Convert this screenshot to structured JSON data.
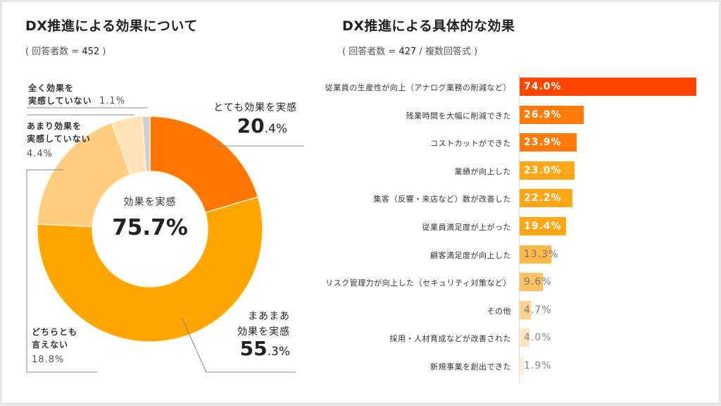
{
  "left_panel": {
    "title": "DX推進による効果について",
    "subtitle_prefix": "( 回答者数 = ",
    "respondents": "452",
    "subtitle_suffix": " )"
  },
  "right_panel": {
    "title": "DX推進による具体的な効果",
    "subtitle_prefix": "( 回答者数 = ",
    "respondents": "427",
    "subtitle_suffix": " / 複数回答式 )"
  },
  "chart_data": [
    {
      "type": "pie",
      "variant": "donut",
      "title": "DX推進による効果について",
      "n": 452,
      "center_caption": "効果を実感",
      "center_value": "75.7%",
      "slices": [
        {
          "label": "とても効果を実感",
          "value": 20.4,
          "color": "#FF7700"
        },
        {
          "label": "まあまあ効果を実感",
          "value": 55.3,
          "color": "#FFA500"
        },
        {
          "label": "どちらとも言えない",
          "value": 18.8,
          "color": "#FFCC80"
        },
        {
          "label": "あまり効果を実感していない",
          "value": 4.4,
          "color": "#FFE2B8"
        },
        {
          "label": "全く効果を実感していない",
          "value": 1.1,
          "color": "#CFCFCF"
        }
      ],
      "labels_display": {
        "very": {
          "line1": "とても効果を実感",
          "int": "20",
          "dec": ".4%"
        },
        "somewhat": {
          "line1": "まあまあ",
          "line2": "効果を実感",
          "int": "55",
          "dec": ".3%"
        },
        "neutral": {
          "line1": "どちらとも",
          "line2": "言えない",
          "pct": "18.8%"
        },
        "notmuch": {
          "line1": "あまり効果を",
          "line2": "実感していない",
          "pct": "4.4%"
        },
        "none": {
          "line1": "全く効果を",
          "line2": "実感していない",
          "pct": "1.1%"
        }
      }
    },
    {
      "type": "bar",
      "orientation": "horizontal",
      "title": "DX推進による具体的な効果",
      "n": 427,
      "xlim": [
        0,
        75
      ],
      "categories": [
        "従業員の生産性が向上（アナログ業務の削減など）",
        "残業時間を大幅に削減できた",
        "コストカットができた",
        "業績が向上した",
        "集客（反響・来店など）数が改善した",
        "従業員満足度が上がった",
        "顧客満足度が向上した",
        "リスク管理力が向上した（セキュリティ対策など）",
        "その他",
        "採用・人材育成などが改善された",
        "新規事業を創出できた"
      ],
      "values": [
        74.0,
        26.9,
        23.9,
        23.0,
        22.2,
        19.4,
        13.3,
        9.6,
        4.7,
        4.0,
        1.9
      ],
      "value_labels": [
        "74.0%",
        "26.9%",
        "23.9%",
        "23.0%",
        "22.2%",
        "19.4%",
        "13.3%",
        "9.6%",
        "4.7%",
        "4.0%",
        "1.9%"
      ],
      "colors": [
        "#FF4500",
        "#FF7A0A",
        "#FF7A0A",
        "#FFA716",
        "#FFA716",
        "#FFA716",
        "#FFB84A",
        "#FFC261",
        "#FFD38C",
        "#FFE5BE",
        "#FFEFD8"
      ],
      "label_colors": [
        "#FFFFFF",
        "#FFFFFF",
        "#FFFFFF",
        "#FFFFFF",
        "#FFFFFF",
        "#FFFFFF",
        "#777777",
        "#777777",
        "#777777",
        "#888888",
        "#888888"
      ]
    }
  ]
}
